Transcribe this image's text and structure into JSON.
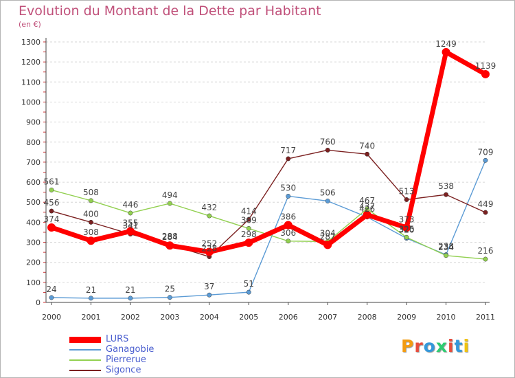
{
  "header": {
    "title": "Evolution du Montant de la Dette par Habitant",
    "subtitle": "(en €)"
  },
  "logo": {
    "text": "Proxiti",
    "letter_colors": [
      "#f39c12",
      "#e74c3c",
      "#3498db",
      "#2ecc71",
      "#e74c3c",
      "#3498db",
      "#f1c40f"
    ]
  },
  "chart_data": {
    "type": "line",
    "title": "Evolution du Montant de la Dette par Habitant",
    "subtitle": "(en €)",
    "xlabel": "",
    "ylabel": "",
    "x": [
      "2000",
      "2001",
      "2002",
      "2003",
      "2004",
      "2005",
      "2006",
      "2007",
      "2008",
      "2009",
      "2010",
      "2011"
    ],
    "ylim": [
      0,
      1300
    ],
    "yticks": [
      0,
      100,
      200,
      300,
      400,
      500,
      600,
      700,
      800,
      900,
      1000,
      1100,
      1200,
      1300
    ],
    "grid": "horizontal dashed",
    "legend_position": "bottom-left",
    "series": [
      {
        "name": "Ganagobie",
        "color": "#5b9bd5",
        "values": [
          24,
          21,
          21,
          25,
          37,
          51,
          530,
          506,
          426,
          320,
          238,
          709
        ],
        "labels": [
          "24",
          "21",
          "21",
          "25",
          "37",
          "51",
          "530",
          "506",
          "426",
          "320",
          "238",
          "709"
        ]
      },
      {
        "name": "Pierrerue",
        "color": "#92d050",
        "values": [
          561,
          508,
          446,
          494,
          432,
          369,
          306,
          304,
          467,
          325,
          234,
          216
        ],
        "labels": [
          "561",
          "508",
          "446",
          "494",
          "432",
          "369",
          "306",
          "304",
          "467",
          "325",
          "234",
          "216"
        ]
      },
      {
        "name": "Sigonce",
        "color": "#7b2020",
        "values": [
          456,
          400,
          341,
          288,
          228,
          414,
          717,
          760,
          740,
          513,
          538,
          449
        ],
        "labels": [
          "456",
          "400",
          "341",
          "288",
          "228",
          "414",
          "717",
          "760",
          "740",
          "513",
          "538",
          "449"
        ]
      },
      {
        "name": "LURS",
        "color": "#ff0000",
        "values": [
          374,
          308,
          355,
          284,
          252,
          298,
          386,
          287,
          437,
          373,
          1249,
          1139
        ],
        "labels": [
          "374",
          "308",
          "355",
          "284",
          "252",
          "298",
          "386",
          "287",
          "437",
          "373",
          "1249",
          "1139"
        ]
      }
    ]
  },
  "legend": {
    "items": [
      {
        "name": "LURS",
        "color": "#ff0000"
      },
      {
        "name": "Ganagobie",
        "color": "#5b9bd5"
      },
      {
        "name": "Pierrerue",
        "color": "#92d050"
      },
      {
        "name": "Sigonce",
        "color": "#7b2020"
      }
    ]
  }
}
